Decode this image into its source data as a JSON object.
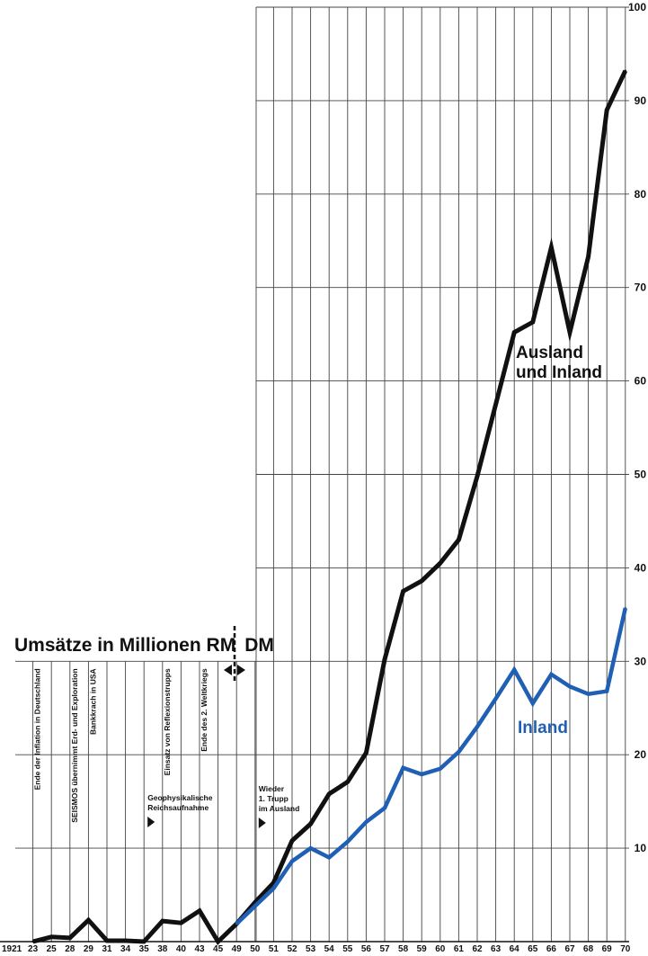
{
  "chart_data": {
    "type": "line",
    "title": "Umsätze in Millionen RM",
    "title_currency_after": "DM",
    "x": [
      "1921",
      "23",
      "25",
      "28",
      "29",
      "31",
      "34",
      "35",
      "38",
      "40",
      "43",
      "45",
      "49",
      "50",
      "51",
      "52",
      "53",
      "54",
      "55",
      "56",
      "57",
      "58",
      "59",
      "60",
      "61",
      "62",
      "63",
      "64",
      "65",
      "66",
      "67",
      "68",
      "69",
      "70"
    ],
    "ylim": [
      0,
      100
    ],
    "yticks": [
      "10",
      "20",
      "30",
      "40",
      "50",
      "60",
      "70",
      "80",
      "90",
      "100"
    ],
    "grid": true,
    "series": [
      {
        "name": "Ausland und Inland",
        "name_lines": [
          "Ausland",
          "und Inland"
        ],
        "color": "#111111",
        "values": [
          null,
          0,
          0.5,
          0.4,
          2.3,
          0.1,
          0.1,
          0,
          2.2,
          2.0,
          3.3,
          0,
          1.9,
          4.2,
          6.3,
          10.8,
          12.6,
          15.8,
          17.1,
          20.2,
          30.2,
          37.5,
          38.6,
          40.5,
          43.0,
          49.8,
          57.5,
          65.2,
          66.3,
          74.3,
          65.2,
          73.3,
          89.0,
          93.2
        ]
      },
      {
        "name": "Inland",
        "color": "#1f5fb4",
        "values": [
          null,
          null,
          null,
          null,
          null,
          null,
          null,
          null,
          null,
          null,
          null,
          null,
          1.9,
          3.8,
          5.7,
          8.6,
          10.0,
          9.0,
          10.7,
          12.8,
          14.3,
          18.6,
          17.9,
          18.5,
          20.3,
          23.0,
          26.0,
          29.1,
          25.5,
          28.6,
          27.3,
          26.5,
          26.8,
          35.7
        ]
      }
    ],
    "annotations": [
      {
        "at": "23",
        "text": "Ende der Inflation in Deutschland",
        "orientation": "vertical"
      },
      {
        "at": "28",
        "text": "SEISMOS übernimmt Erd- und Exploration",
        "orientation": "vertical"
      },
      {
        "at": "29",
        "text": "Bankkrach in USA",
        "orientation": "vertical"
      },
      {
        "at": "38",
        "text": "Einsatz von Reflexionstrupps",
        "orientation": "vertical"
      },
      {
        "at": "43",
        "text": "Ende des 2. Weltkriegs",
        "orientation": "vertical"
      },
      {
        "at": "35",
        "text": "Geophysikalische Reichsaufnahme",
        "lines": [
          "Geophysikalische",
          "Reichsaufnahme"
        ],
        "marker": "triangle"
      },
      {
        "at": "50",
        "text": "Wieder 1. Trupp im Ausland",
        "lines": [
          "Wieder",
          "1. Trupp",
          "im Ausland"
        ],
        "marker": "triangle"
      }
    ]
  }
}
